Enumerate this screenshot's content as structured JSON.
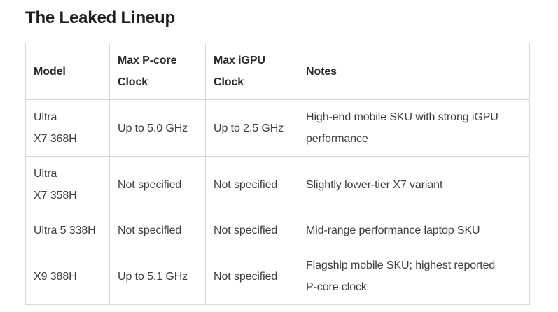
{
  "page": {
    "title": "The Leaked Lineup"
  },
  "table": {
    "columns": [
      "Model",
      "Max P-core\nClock",
      "Max iGPU\nClock",
      "Notes"
    ],
    "rows": [
      {
        "model": "Ultra\nX7 368H",
        "pcore": "Up to 5.0 GHz",
        "igpu": "Up to 2.5 GHz",
        "notes": "High-end mobile SKU with strong iGPU\nperformance"
      },
      {
        "model": "Ultra\nX7 358H",
        "pcore": "Not specified",
        "igpu": "Not specified",
        "notes": "Slightly lower-tier X7 variant"
      },
      {
        "model": "Ultra 5 338H",
        "pcore": "Not specified",
        "igpu": "Not specified",
        "notes": "Mid-range performance laptop SKU"
      },
      {
        "model": "X9 388H",
        "pcore": "Up to 5.1 GHz",
        "igpu": "Not specified",
        "notes": "Flagship mobile SKU; highest reported\nP-core clock"
      }
    ]
  },
  "colors": {
    "background": "#ffffff",
    "border": "#d9d9d9",
    "title_text": "#1f1f1f",
    "header_text": "#2b2b2b",
    "body_text": "#3d3d3d"
  }
}
